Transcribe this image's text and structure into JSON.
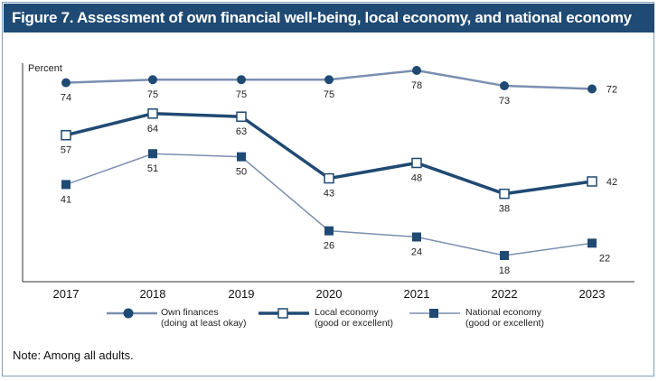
{
  "title": "Figure 7. Assessment of own financial well-being, local economy, and national economy (by year)",
  "note": "Note: Among all adults.",
  "chart_data": {
    "type": "line",
    "ylabel": "Percent",
    "categories": [
      "2017",
      "2018",
      "2019",
      "2020",
      "2021",
      "2022",
      "2023"
    ],
    "grid": false,
    "legend": "bottom",
    "series": [
      {
        "name": "Own finances",
        "sub": "(doing at least okay)",
        "values": [
          74,
          75,
          75,
          75,
          78,
          73,
          72
        ],
        "color": "#7b8fb0",
        "marker": "filled-circle"
      },
      {
        "name": "Local economy",
        "sub": "(good or excellent)",
        "values": [
          57,
          64,
          63,
          43,
          48,
          38,
          42
        ],
        "color": "#1f4a73",
        "marker": "open-square"
      },
      {
        "name": "National economy",
        "sub": "(good or excellent)",
        "values": [
          41,
          51,
          50,
          26,
          24,
          18,
          22
        ],
        "color": "#7b8fb0",
        "marker": "filled-square"
      }
    ]
  }
}
